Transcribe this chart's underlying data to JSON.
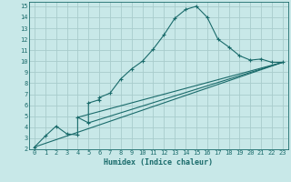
{
  "title": "",
  "xlabel": "Humidex (Indice chaleur)",
  "bg_color": "#c8e8e8",
  "grid_color": "#a8cccc",
  "line_color": "#1a6b6b",
  "xlim": [
    -0.5,
    23.5
  ],
  "ylim": [
    2,
    15.4
  ],
  "xticks": [
    0,
    1,
    2,
    3,
    4,
    5,
    6,
    7,
    8,
    9,
    10,
    11,
    12,
    13,
    14,
    15,
    16,
    17,
    18,
    19,
    20,
    21,
    22,
    23
  ],
  "yticks": [
    2,
    3,
    4,
    5,
    6,
    7,
    8,
    9,
    10,
    11,
    12,
    13,
    14,
    15
  ],
  "series1_x": [
    0,
    1,
    2,
    3,
    4,
    4,
    5,
    5,
    6,
    6,
    7,
    8,
    9,
    10,
    11,
    12,
    13,
    14,
    15,
    16,
    17,
    18,
    19,
    20,
    21,
    22,
    23
  ],
  "series1_y": [
    2.2,
    3.2,
    4.1,
    3.4,
    3.3,
    4.9,
    4.4,
    6.2,
    6.5,
    6.7,
    7.1,
    8.4,
    9.3,
    10.0,
    11.1,
    12.4,
    13.9,
    14.7,
    15.0,
    14.0,
    12.0,
    11.3,
    10.5,
    10.1,
    10.2,
    9.9,
    9.9
  ],
  "series2_x": [
    0,
    23
  ],
  "series2_y": [
    2.2,
    9.9
  ],
  "series3_x": [
    4,
    23
  ],
  "series3_y": [
    4.9,
    9.9
  ],
  "series4_x": [
    5,
    23
  ],
  "series4_y": [
    4.4,
    9.9
  ]
}
